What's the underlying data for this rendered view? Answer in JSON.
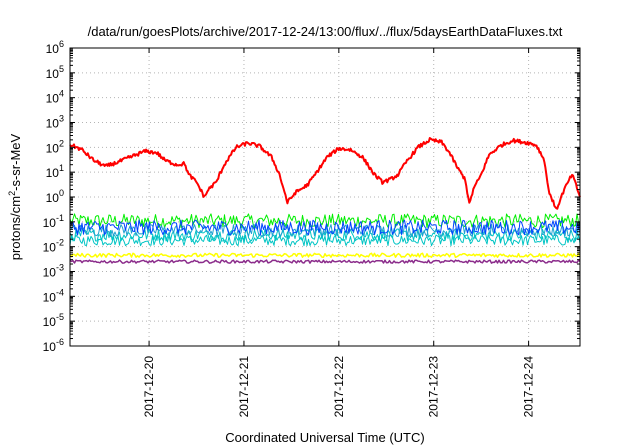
{
  "chart_data": {
    "type": "line",
    "title": "/data/run/goesPlots/archive/2017-12-24/13:00/flux/../flux/5daysEarthDataFluxes.txt",
    "xlabel": "Coordinated Universal Time (UTC)",
    "ylabel": {
      "base": "protons/cm",
      "sup": "2",
      "rest": "-s-sr-MeV"
    },
    "ylog": true,
    "grid": true,
    "legend": "none",
    "xlim": [
      "2017-12-19T04:00",
      "2017-12-24T13:00"
    ],
    "ylim": [
      1e-06,
      1000000.0
    ],
    "x_ticks": [
      "2017-12-20",
      "2017-12-21",
      "2017-12-22",
      "2017-12-23",
      "2017-12-24"
    ],
    "y_ticks": [
      {
        "v": 1e-06,
        "base": "10",
        "exp": "-6"
      },
      {
        "v": 1e-05,
        "base": "10",
        "exp": "-5"
      },
      {
        "v": 0.0001,
        "base": "10",
        "exp": "-4"
      },
      {
        "v": 0.001,
        "base": "10",
        "exp": "-3"
      },
      {
        "v": 0.01,
        "base": "10",
        "exp": "-2"
      },
      {
        "v": 0.1,
        "base": "10",
        "exp": "-1"
      },
      {
        "v": 1,
        "base": "10",
        "exp": "0"
      },
      {
        "v": 10,
        "base": "10",
        "exp": "1"
      },
      {
        "v": 100,
        "base": "10",
        "exp": "2"
      },
      {
        "v": 1000,
        "base": "10",
        "exp": "3"
      },
      {
        "v": 10000,
        "base": "10",
        "exp": "4"
      },
      {
        "v": 100000,
        "base": "10",
        "exp": "5"
      },
      {
        "v": 1000000,
        "base": "10",
        "exp": "6"
      }
    ],
    "series": [
      {
        "color": "#ff0000",
        "width": 2,
        "noise": 0.15,
        "points": [
          [
            "2017-12-19T04:00",
            130
          ],
          [
            "2017-12-19T07:00",
            80
          ],
          [
            "2017-12-19T10:00",
            30
          ],
          [
            "2017-12-19T13:00",
            17
          ],
          [
            "2017-12-19T16:00",
            25
          ],
          [
            "2017-12-19T20:00",
            45
          ],
          [
            "2017-12-19T23:00",
            70
          ],
          [
            "2017-12-20T02:00",
            60
          ],
          [
            "2017-12-20T04:00",
            30
          ],
          [
            "2017-12-20T07:00",
            20
          ],
          [
            "2017-12-20T09:00",
            22
          ],
          [
            "2017-12-20T10:00",
            8
          ],
          [
            "2017-12-20T12:00",
            4
          ],
          [
            "2017-12-20T14:00",
            1
          ],
          [
            "2017-12-20T15:00",
            2
          ],
          [
            "2017-12-20T17:00",
            4
          ],
          [
            "2017-12-20T19:00",
            20
          ],
          [
            "2017-12-20T22:00",
            100
          ],
          [
            "2017-12-21T01:00",
            150
          ],
          [
            "2017-12-21T04:00",
            110
          ],
          [
            "2017-12-21T07:00",
            40
          ],
          [
            "2017-12-21T09:00",
            8
          ],
          [
            "2017-12-21T11:00",
            0.6
          ],
          [
            "2017-12-21T13:00",
            1.5
          ],
          [
            "2017-12-21T16:00",
            3
          ],
          [
            "2017-12-21T18:00",
            8
          ],
          [
            "2017-12-21T21:00",
            40
          ],
          [
            "2017-12-22T00:00",
            90
          ],
          [
            "2017-12-22T03:00",
            80
          ],
          [
            "2017-12-22T06:00",
            40
          ],
          [
            "2017-12-22T09:00",
            8
          ],
          [
            "2017-12-22T11:00",
            4
          ],
          [
            "2017-12-22T13:00",
            5
          ],
          [
            "2017-12-22T15:00",
            8
          ],
          [
            "2017-12-22T17:00",
            25
          ],
          [
            "2017-12-22T20:00",
            100
          ],
          [
            "2017-12-22T23:00",
            200
          ],
          [
            "2017-12-23T02:00",
            160
          ],
          [
            "2017-12-23T04:00",
            60
          ],
          [
            "2017-12-23T06:00",
            15
          ],
          [
            "2017-12-23T08:00",
            5
          ],
          [
            "2017-12-23T09:00",
            0.5
          ],
          [
            "2017-12-23T10:00",
            2
          ],
          [
            "2017-12-23T12:00",
            8
          ],
          [
            "2017-12-23T14:00",
            50
          ],
          [
            "2017-12-23T17:00",
            120
          ],
          [
            "2017-12-23T20:00",
            190
          ],
          [
            "2017-12-24T00:00",
            150
          ],
          [
            "2017-12-24T02:00",
            120
          ],
          [
            "2017-12-24T04:00",
            30
          ],
          [
            "2017-12-24T05:00",
            2
          ],
          [
            "2017-12-24T07:00",
            0.3
          ],
          [
            "2017-12-24T09:00",
            2
          ],
          [
            "2017-12-24T11:00",
            8
          ],
          [
            "2017-12-24T12:00",
            3
          ],
          [
            "2017-12-24T13:00",
            1
          ]
        ]
      },
      {
        "color": "#00ee00",
        "width": 1,
        "level": 0.11,
        "noise": 0.28
      },
      {
        "color": "#00c4c4",
        "width": 1,
        "level": 0.018,
        "noise": 0.22
      },
      {
        "color": "#00c4c4",
        "width": 1,
        "level": 0.03,
        "noise": 0.25
      },
      {
        "color": "#1fa0d0",
        "width": 1,
        "level": 0.045,
        "noise": 0.25
      },
      {
        "color": "#0044ff",
        "width": 1,
        "level": 0.06,
        "noise": 0.3
      },
      {
        "color": "#ffff00",
        "width": 1.5,
        "level": 0.0045,
        "noise": 0.08
      },
      {
        "color": "#8b2c8b",
        "width": 1.5,
        "level": 0.0025,
        "noise": 0.06
      }
    ]
  }
}
